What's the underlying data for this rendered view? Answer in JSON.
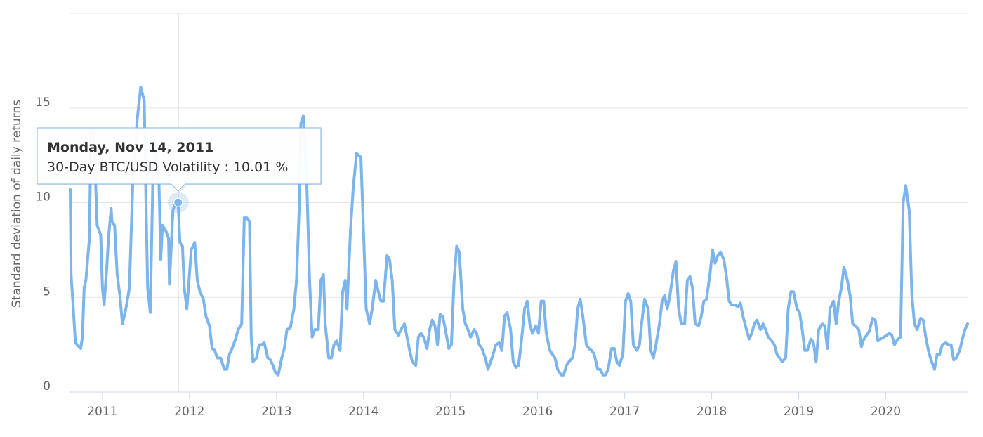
{
  "chart_data": {
    "type": "line",
    "y_axis_label": "Standard deviation of daily returns",
    "xlim": [
      2010.63,
      2020.94
    ],
    "xticks": [
      2011,
      2012,
      2013,
      2014,
      2015,
      2016,
      2017,
      2018,
      2019,
      2020
    ],
    "ylim": [
      0,
      20
    ],
    "yticks": [
      0,
      5,
      10,
      15
    ],
    "grid": true,
    "x": [
      2010.63,
      2010.64,
      2010.66,
      2010.69,
      2010.75,
      2010.77,
      2010.79,
      2010.81,
      2010.85,
      2010.87,
      2010.9,
      2010.93,
      2010.94,
      2010.98,
      2011.0,
      2011.02,
      2011.05,
      2011.07,
      2011.1,
      2011.11,
      2011.14,
      2011.17,
      2011.2,
      2011.23,
      2011.27,
      2011.31,
      2011.35,
      2011.4,
      2011.44,
      2011.48,
      2011.5,
      2011.52,
      2011.55,
      2011.58,
      2011.61,
      2011.65,
      2011.67,
      2011.69,
      2011.73,
      2011.76,
      2011.77,
      2011.81,
      2011.84,
      2011.87,
      2011.89,
      2011.92,
      2011.94,
      2011.97,
      2012.0,
      2012.02,
      2012.06,
      2012.09,
      2012.12,
      2012.16,
      2012.19,
      2012.23,
      2012.26,
      2012.29,
      2012.32,
      2012.36,
      2012.4,
      2012.43,
      2012.46,
      2012.49,
      2012.53,
      2012.56,
      2012.6,
      2012.63,
      2012.66,
      2012.69,
      2012.71,
      2012.73,
      2012.77,
      2012.8,
      2012.83,
      2012.86,
      2012.9,
      2012.93,
      2012.96,
      2012.99,
      2013.02,
      2013.06,
      2013.09,
      2013.12,
      2013.16,
      2013.2,
      2013.23,
      2013.26,
      2013.28,
      2013.31,
      2013.35,
      2013.38,
      2013.41,
      2013.44,
      2013.48,
      2013.51,
      2013.54,
      2013.56,
      2013.6,
      2013.63,
      2013.66,
      2013.69,
      2013.73,
      2013.76,
      2013.79,
      2013.81,
      2013.85,
      2013.88,
      2013.92,
      2013.97,
      2014.0,
      2014.03,
      2014.07,
      2014.1,
      2014.14,
      2014.17,
      2014.2,
      2014.23,
      2014.27,
      2014.3,
      2014.33,
      2014.36,
      2014.4,
      2014.43,
      2014.47,
      2014.5,
      2014.53,
      2014.56,
      2014.6,
      2014.63,
      2014.66,
      2014.69,
      2014.73,
      2014.76,
      2014.79,
      2014.82,
      2014.85,
      2014.88,
      2014.91,
      2014.94,
      2014.98,
      2015.01,
      2015.04,
      2015.07,
      2015.1,
      2015.14,
      2015.17,
      2015.2,
      2015.23,
      2015.27,
      2015.3,
      2015.33,
      2015.36,
      2015.4,
      2015.43,
      2015.46,
      2015.49,
      2015.52,
      2015.56,
      2015.59,
      2015.62,
      2015.65,
      2015.69,
      2015.72,
      2015.75,
      2015.78,
      2015.81,
      2015.85,
      2015.88,
      2015.91,
      2015.94,
      2015.98,
      2016.01,
      2016.04,
      2016.07,
      2016.1,
      2016.14,
      2016.17,
      2016.2,
      2016.23,
      2016.27,
      2016.3,
      2016.33,
      2016.36,
      2016.4,
      2016.43,
      2016.46,
      2016.49,
      2016.52,
      2016.56,
      2016.59,
      2016.62,
      2016.65,
      2016.69,
      2016.72,
      2016.75,
      2016.78,
      2016.81,
      2016.85,
      2016.88,
      2016.91,
      2016.94,
      2016.98,
      2017.01,
      2017.04,
      2017.07,
      2017.1,
      2017.14,
      2017.17,
      2017.2,
      2017.23,
      2017.27,
      2017.3,
      2017.33,
      2017.36,
      2017.4,
      2017.43,
      2017.46,
      2017.49,
      2017.52,
      2017.56,
      2017.59,
      2017.62,
      2017.65,
      2017.69,
      2017.72,
      2017.75,
      2017.78,
      2017.81,
      2017.85,
      2017.88,
      2017.91,
      2017.94,
      2017.98,
      2018.01,
      2018.04,
      2018.07,
      2018.1,
      2018.14,
      2018.17,
      2018.2,
      2018.23,
      2018.27,
      2018.3,
      2018.33,
      2018.36,
      2018.4,
      2018.43,
      2018.46,
      2018.49,
      2018.52,
      2018.56,
      2018.59,
      2018.62,
      2018.65,
      2018.69,
      2018.72,
      2018.75,
      2018.78,
      2018.81,
      2018.85,
      2018.88,
      2018.91,
      2018.94,
      2018.98,
      2019.01,
      2019.04,
      2019.07,
      2019.1,
      2019.14,
      2019.17,
      2019.2,
      2019.23,
      2019.27,
      2019.3,
      2019.33,
      2019.36,
      2019.4,
      2019.43,
      2019.46,
      2019.49,
      2019.52,
      2019.56,
      2019.59,
      2019.62,
      2019.65,
      2019.69,
      2019.72,
      2019.75,
      2019.78,
      2019.81,
      2019.85,
      2019.88,
      2019.91,
      2019.94,
      2019.98,
      2020.01,
      2020.04,
      2020.07,
      2020.1,
      2020.14,
      2020.17,
      2020.2,
      2020.23,
      2020.27,
      2020.3,
      2020.33,
      2020.36,
      2020.4,
      2020.43,
      2020.46,
      2020.49,
      2020.52,
      2020.56,
      2020.59,
      2020.62,
      2020.65,
      2020.69,
      2020.72,
      2020.75,
      2020.78,
      2020.81,
      2020.85,
      2020.88,
      2020.91,
      2020.94
    ],
    "series": [
      {
        "color": "#7cb5ec",
        "values": [
          10.7,
          6.2,
          4.8,
          2.6,
          2.3,
          2.9,
          5.5,
          5.9,
          8.1,
          13.9,
          13.7,
          10.0,
          8.8,
          8.3,
          5.5,
          4.6,
          6.6,
          8.1,
          9.7,
          9.0,
          8.8,
          6.2,
          5.1,
          3.6,
          4.4,
          5.5,
          11.1,
          14.4,
          16.1,
          15.4,
          10.3,
          5.5,
          4.2,
          11.4,
          13.3,
          11.1,
          7.0,
          8.8,
          8.5,
          8.1,
          5.7,
          9.6,
          10.0,
          10.01,
          7.9,
          7.7,
          5.5,
          4.4,
          6.2,
          7.5,
          7.9,
          5.9,
          5.3,
          4.9,
          4.0,
          3.5,
          2.3,
          2.2,
          1.8,
          1.8,
          1.2,
          1.2,
          2.0,
          2.3,
          2.8,
          3.3,
          3.6,
          9.2,
          9.2,
          9.0,
          2.9,
          1.6,
          1.8,
          2.5,
          2.5,
          2.6,
          1.8,
          1.7,
          1.4,
          1.0,
          0.9,
          1.8,
          2.3,
          3.3,
          3.4,
          4.4,
          5.9,
          9.6,
          14.2,
          14.6,
          10.7,
          5.9,
          2.9,
          3.3,
          3.3,
          5.9,
          6.2,
          3.6,
          1.8,
          1.8,
          2.5,
          2.7,
          2.2,
          5.3,
          5.9,
          4.4,
          8.5,
          10.7,
          12.6,
          12.4,
          8.5,
          4.4,
          3.6,
          4.4,
          5.9,
          5.3,
          4.8,
          4.8,
          7.2,
          7.0,
          5.9,
          3.3,
          3.0,
          3.3,
          3.6,
          2.9,
          2.2,
          1.6,
          1.4,
          2.9,
          3.1,
          2.9,
          2.3,
          3.3,
          3.8,
          3.5,
          2.5,
          4.1,
          4.0,
          3.3,
          2.3,
          2.5,
          5.9,
          7.7,
          7.4,
          4.4,
          3.6,
          3.3,
          2.9,
          3.3,
          3.1,
          2.5,
          2.3,
          1.8,
          1.2,
          1.6,
          2.0,
          2.5,
          2.6,
          2.2,
          4.0,
          4.2,
          3.3,
          1.6,
          1.3,
          1.4,
          2.5,
          4.4,
          4.8,
          3.6,
          3.1,
          3.5,
          3.1,
          4.8,
          4.8,
          3.1,
          2.2,
          2.0,
          1.8,
          1.2,
          0.9,
          0.9,
          1.4,
          1.6,
          1.8,
          2.5,
          4.4,
          4.9,
          4.0,
          2.5,
          2.3,
          2.2,
          2.0,
          1.2,
          1.2,
          0.9,
          0.9,
          1.2,
          2.3,
          2.3,
          1.6,
          1.4,
          2.0,
          4.8,
          5.2,
          4.8,
          2.5,
          2.2,
          2.5,
          3.8,
          4.9,
          4.4,
          2.2,
          1.8,
          2.5,
          3.6,
          4.8,
          5.1,
          4.4,
          5.1,
          6.4,
          6.9,
          4.4,
          3.6,
          3.6,
          5.9,
          6.1,
          5.5,
          3.6,
          3.5,
          4.0,
          4.8,
          4.9,
          6.2,
          7.5,
          6.8,
          7.2,
          7.4,
          7.0,
          6.1,
          4.8,
          4.6,
          4.6,
          4.5,
          4.7,
          4.0,
          3.3,
          2.8,
          3.1,
          3.6,
          3.8,
          3.3,
          3.6,
          3.3,
          2.9,
          2.7,
          2.5,
          2.0,
          1.8,
          1.6,
          1.8,
          4.4,
          5.3,
          5.3,
          4.4,
          4.2,
          3.3,
          2.2,
          2.2,
          2.8,
          2.6,
          1.6,
          3.3,
          3.6,
          3.5,
          2.3,
          4.4,
          4.8,
          3.6,
          4.8,
          5.5,
          6.6,
          5.9,
          5.1,
          3.6,
          3.5,
          3.3,
          2.4,
          2.8,
          3.0,
          3.2,
          3.9,
          3.8,
          2.7,
          2.8,
          2.9,
          3.0,
          3.1,
          3.0,
          2.5,
          2.8,
          2.9,
          10.0,
          10.9,
          9.6,
          5.1,
          3.6,
          3.3,
          3.9,
          3.8,
          2.9,
          2.2,
          1.7,
          1.2,
          2.0,
          2.0,
          2.5,
          2.6,
          2.5,
          2.5,
          1.7,
          1.8,
          2.2,
          2.8,
          3.3,
          3.6
        ]
      }
    ],
    "tooltip": {
      "title": "Monday, Nov 14, 2011",
      "text": "30-Day BTC/USD Volatility : 10.01 %",
      "x": 2011.87,
      "value": 10.01
    }
  }
}
